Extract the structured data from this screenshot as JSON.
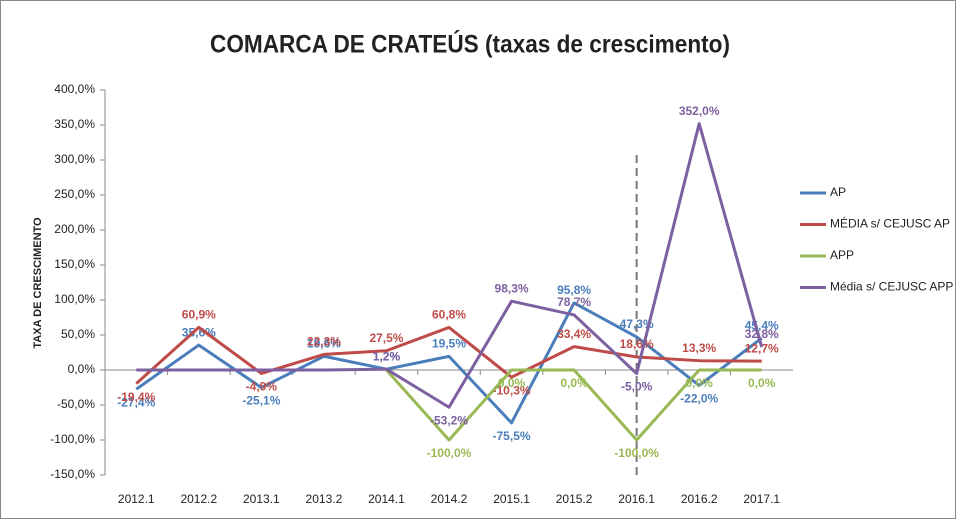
{
  "chart_data": {
    "type": "line",
    "title": "COMARCA DE CRATEÚS (taxas de crescimento)",
    "y_label": "TAXA DE CRESCIMENTO",
    "categories": [
      "2012.1",
      "2012.2",
      "2013.1",
      "2013.2",
      "2014.1",
      "2014.2",
      "2015.1",
      "2015.2",
      "2016.1",
      "2016.2",
      "2017.1"
    ],
    "series": [
      {
        "name": "AP",
        "color": "#4a7ebb",
        "values": [
          -27.4,
          35.6,
          -25.1,
          19.6,
          1.2,
          19.5,
          -75.5,
          95.8,
          47.3,
          -22.0,
          45.4
        ],
        "value_labels": [
          "-27,4%",
          "35,6%",
          "-25,1%",
          "19,6%",
          "1,2%",
          "19,5%",
          "-75,5%",
          "95,8%",
          "47,3%",
          "-22,0%",
          "45,4%"
        ]
      },
      {
        "name": "MÉDIA s/ CEJUSC AP",
        "color": "#be4b48",
        "values": [
          -19.4,
          60.9,
          -4.9,
          22.3,
          27.5,
          60.8,
          -10.3,
          33.4,
          18.6,
          13.3,
          12.7
        ],
        "value_labels": [
          "-19,4%",
          "60,9%",
          "-4,9%",
          "22,3%",
          "27,5%",
          "60,8%",
          "-10,3%",
          "33,4%",
          "18,6%",
          "13,3%",
          "12,7%"
        ]
      },
      {
        "name": "APP",
        "color": "#98b954",
        "values": [
          null,
          null,
          null,
          null,
          0,
          -100,
          0,
          0,
          -100,
          0,
          0
        ],
        "value_labels": [
          null,
          null,
          null,
          null,
          null,
          "-100,0%",
          "0,0%",
          "0,0%",
          "-100,0%",
          "0,0%",
          "0,0%"
        ]
      },
      {
        "name": "Média s/ CEJUSC APP",
        "color": "#7d60a0",
        "values": [
          0,
          0,
          0,
          0,
          1.2,
          -53.2,
          98.3,
          78.7,
          -5.0,
          352.0,
          32.8
        ],
        "value_labels": [
          null,
          null,
          null,
          null,
          "1,2%",
          "-53,2%",
          "98,3%",
          "78,7%",
          "-5,0%",
          "352,0%",
          "32,8%"
        ]
      }
    ],
    "ylim": [
      -150,
      400
    ],
    "yticks": [
      {
        "value": -150,
        "label": "-150,0%"
      },
      {
        "value": -100,
        "label": "-100,0%"
      },
      {
        "value": -50,
        "label": "-50,0%"
      },
      {
        "value": 0,
        "label": "0,0%"
      },
      {
        "value": 50,
        "label": "50,0%"
      },
      {
        "value": 100,
        "label": "100,0%"
      },
      {
        "value": 150,
        "label": "150,0%"
      },
      {
        "value": 200,
        "label": "200,0%"
      },
      {
        "value": 250,
        "label": "250,0%"
      },
      {
        "value": 300,
        "label": "300,0%"
      },
      {
        "value": 350,
        "label": "350,0%"
      },
      {
        "value": 400,
        "label": "400,0%"
      }
    ],
    "grid": false,
    "legend": "right"
  }
}
